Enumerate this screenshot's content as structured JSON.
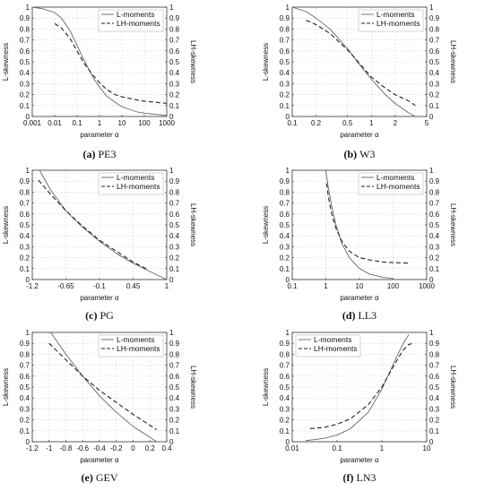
{
  "chart_data": [
    {
      "id": "pe3",
      "caption_letter": "(a)",
      "caption_name": "PE3",
      "type": "line",
      "xscale": "log",
      "xlim": [
        0.001,
        1000
      ],
      "xticks": [
        0.001,
        0.01,
        0.1,
        1,
        10,
        100,
        1000
      ],
      "xtick_labels": [
        "0.001",
        "0.01",
        "0.1",
        "1",
        "10",
        "100",
        "1000"
      ],
      "xlabel": "parameter α",
      "ylabel_left": "L-skewness",
      "ylabel_right": "LH-skewness",
      "ylim": [
        0,
        1
      ],
      "yticks": [
        "0",
        "0.1",
        "0.2",
        "0.3",
        "0.4",
        "0.5",
        "0.6",
        "0.7",
        "0.8",
        "0.9",
        "1"
      ],
      "grid": true,
      "legend_position": "top-right",
      "series": [
        {
          "name": "L-moments",
          "style": "solid",
          "x": [
            0.001,
            0.003,
            0.01,
            0.02,
            0.05,
            0.1,
            0.2,
            0.5,
            1,
            2,
            5,
            10,
            50,
            100,
            1000
          ],
          "y": [
            1.0,
            0.985,
            0.95,
            0.9,
            0.78,
            0.65,
            0.52,
            0.36,
            0.27,
            0.19,
            0.13,
            0.09,
            0.04,
            0.03,
            0.01
          ]
        },
        {
          "name": "LH-moments",
          "style": "dashed",
          "x": [
            0.01,
            0.02,
            0.05,
            0.1,
            0.2,
            0.5,
            1,
            2,
            5,
            10,
            50,
            100,
            1000
          ],
          "y": [
            0.85,
            0.81,
            0.71,
            0.6,
            0.49,
            0.38,
            0.31,
            0.25,
            0.2,
            0.18,
            0.15,
            0.14,
            0.12
          ]
        }
      ]
    },
    {
      "id": "w3",
      "caption_letter": "(b)",
      "caption_name": "W3",
      "type": "line",
      "xscale": "log",
      "xlim": [
        0.1,
        5
      ],
      "xticks": [
        0.1,
        0.2,
        0.5,
        1,
        2,
        5
      ],
      "xtick_labels": [
        "0.1",
        "0.2",
        "0.5",
        "1",
        "2",
        "5"
      ],
      "xlabel": "parameter α",
      "ylabel_left": "L-skewness",
      "ylabel_right": "LH-skewness",
      "ylim": [
        0,
        1
      ],
      "yticks": [
        "0",
        "0.1",
        "0.2",
        "0.3",
        "0.4",
        "0.5",
        "0.6",
        "0.7",
        "0.8",
        "0.9",
        "1"
      ],
      "grid": true,
      "legend_position": "top-right",
      "series": [
        {
          "name": "L-moments",
          "style": "solid",
          "x": [
            0.1,
            0.15,
            0.2,
            0.3,
            0.5,
            0.7,
            1,
            1.5,
            2,
            3,
            3.6
          ],
          "y": [
            1.0,
            0.96,
            0.9,
            0.8,
            0.62,
            0.48,
            0.34,
            0.2,
            0.12,
            0.03,
            0.0
          ]
        },
        {
          "name": "LH-moments",
          "style": "dashed",
          "x": [
            0.15,
            0.2,
            0.3,
            0.5,
            0.7,
            1,
            1.5,
            2,
            3,
            3.6
          ],
          "y": [
            0.88,
            0.84,
            0.76,
            0.61,
            0.49,
            0.36,
            0.26,
            0.2,
            0.14,
            0.1
          ]
        }
      ]
    },
    {
      "id": "pg",
      "caption_letter": "(c)",
      "caption_name": "PG",
      "type": "line",
      "xscale": "linear",
      "xlim": [
        -1.2,
        1
      ],
      "xticks": [
        -1.2,
        -0.65,
        -0.1,
        0.45,
        1
      ],
      "xtick_labels": [
        "-1.2",
        "-0.65",
        "-0.1",
        "0.45",
        "1"
      ],
      "xlabel": "parameter α",
      "ylabel_left": "L-skewness",
      "ylabel_right": "LH-skewness",
      "ylim": [
        0,
        1
      ],
      "yticks": [
        "0",
        "0.1",
        "0.2",
        "0.3",
        "0.4",
        "0.5",
        "0.6",
        "0.7",
        "0.8",
        "0.9",
        "1"
      ],
      "grid": true,
      "legend_position": "top-right",
      "series": [
        {
          "name": "L-moments",
          "style": "solid",
          "x": [
            -1.08,
            -0.9,
            -0.65,
            -0.4,
            -0.1,
            0.2,
            0.45,
            0.7,
            1.0
          ],
          "y": [
            1.0,
            0.82,
            0.63,
            0.49,
            0.35,
            0.23,
            0.15,
            0.08,
            0.0
          ]
        },
        {
          "name": "LH-moments",
          "style": "dashed",
          "x": [
            -1.1,
            -0.9,
            -0.65,
            -0.4,
            -0.1,
            0.2,
            0.45,
            0.7
          ],
          "y": [
            0.91,
            0.78,
            0.63,
            0.5,
            0.36,
            0.25,
            0.16,
            0.09
          ]
        }
      ]
    },
    {
      "id": "ll3",
      "caption_letter": "(d)",
      "caption_name": "LL3",
      "type": "line",
      "xscale": "log",
      "xlim": [
        0.1,
        1000
      ],
      "xticks": [
        0.1,
        1,
        10,
        100,
        1000
      ],
      "xtick_labels": [
        "0.1",
        "1",
        "10",
        "100",
        "1000"
      ],
      "xlabel": "parameter α",
      "ylabel_left": "L-skewness",
      "ylabel_right": "LH-skewness",
      "ylim": [
        0,
        1
      ],
      "yticks": [
        "0",
        "0.1",
        "0.2",
        "0.3",
        "0.4",
        "0.5",
        "0.6",
        "0.7",
        "0.8",
        "0.9",
        "1"
      ],
      "grid": true,
      "legend_position": "top-right",
      "series": [
        {
          "name": "L-moments",
          "style": "solid",
          "x": [
            1.0,
            1.2,
            1.5,
            2,
            3,
            5,
            10,
            20,
            50,
            100
          ],
          "y": [
            1.0,
            0.83,
            0.67,
            0.5,
            0.33,
            0.2,
            0.1,
            0.05,
            0.02,
            0.01
          ]
        },
        {
          "name": "LH-moments",
          "style": "dashed",
          "x": [
            1.05,
            1.2,
            1.5,
            2,
            3,
            5,
            10,
            20,
            50,
            100,
            300
          ],
          "y": [
            0.88,
            0.75,
            0.6,
            0.47,
            0.35,
            0.26,
            0.2,
            0.18,
            0.16,
            0.155,
            0.15
          ]
        }
      ]
    },
    {
      "id": "gev",
      "caption_letter": "(e)",
      "caption_name": "GEV",
      "type": "line",
      "xscale": "linear",
      "xlim": [
        -1.2,
        0.4
      ],
      "xticks": [
        -1.2,
        -1,
        -0.8,
        -0.6,
        -0.4,
        -0.2,
        0,
        0.2,
        0.4
      ],
      "xtick_labels": [
        "-1.2",
        "-1",
        "-0.8",
        "-0.6",
        "-0.4",
        "-0.2",
        "0",
        "0.2",
        "0.4"
      ],
      "xlabel": "parameter α",
      "ylabel_left": "L-skewness",
      "ylabel_right": "LH-skewness",
      "ylim": [
        0,
        1
      ],
      "yticks": [
        "0",
        "0.1",
        "0.2",
        "0.3",
        "0.4",
        "0.5",
        "0.6",
        "0.7",
        "0.8",
        "0.9",
        "1"
      ],
      "grid": true,
      "legend_position": "top-right",
      "series": [
        {
          "name": "L-moments",
          "style": "solid",
          "x": [
            -0.98,
            -0.8,
            -0.6,
            -0.4,
            -0.2,
            0,
            0.2,
            0.28
          ],
          "y": [
            1.0,
            0.8,
            0.6,
            0.42,
            0.27,
            0.14,
            0.04,
            0.0
          ]
        },
        {
          "name": "LH-moments",
          "style": "dashed",
          "x": [
            -1.0,
            -0.8,
            -0.6,
            -0.4,
            -0.2,
            0,
            0.2,
            0.28
          ],
          "y": [
            0.9,
            0.75,
            0.6,
            0.47,
            0.36,
            0.25,
            0.15,
            0.11
          ]
        }
      ]
    },
    {
      "id": "ln3",
      "caption_letter": "(f)",
      "caption_name": "LN3",
      "type": "line",
      "xscale": "log",
      "xlim": [
        0.01,
        10
      ],
      "xticks": [
        0.01,
        0.1,
        1,
        10
      ],
      "xtick_labels": [
        "0.01",
        "0.1",
        "1",
        "10"
      ],
      "xlabel": "parameter α",
      "ylabel_left": "L-skewness",
      "ylabel_right": "LH-skewness",
      "ylim": [
        0,
        1
      ],
      "yticks": [
        "0",
        "0.1",
        "0.2",
        "0.3",
        "0.4",
        "0.5",
        "0.6",
        "0.7",
        "0.8",
        "0.9",
        "1"
      ],
      "grid": true,
      "legend_position": "top-left",
      "series": [
        {
          "name": "L-moments",
          "style": "solid",
          "x": [
            0.02,
            0.05,
            0.1,
            0.2,
            0.5,
            1,
            2,
            3,
            4
          ],
          "y": [
            0.01,
            0.03,
            0.06,
            0.12,
            0.27,
            0.48,
            0.75,
            0.9,
            0.98
          ]
        },
        {
          "name": "LH-moments",
          "style": "dashed",
          "x": [
            0.025,
            0.05,
            0.1,
            0.2,
            0.5,
            1,
            2,
            3,
            4,
            5
          ],
          "y": [
            0.12,
            0.13,
            0.16,
            0.21,
            0.34,
            0.5,
            0.72,
            0.84,
            0.89,
            0.9
          ]
        }
      ]
    }
  ]
}
